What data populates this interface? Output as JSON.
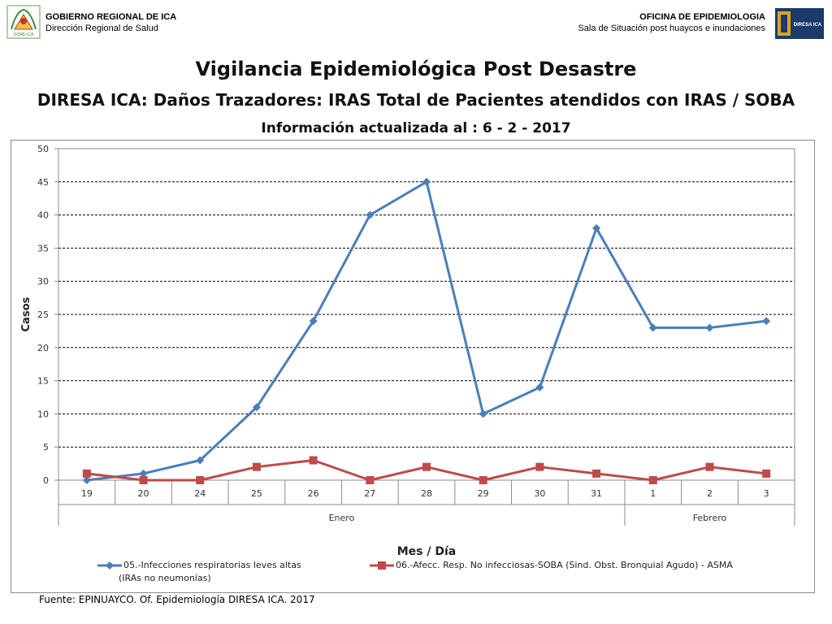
{
  "header": {
    "left_org": "GOBIERNO REGIONAL DE ICA",
    "left_sub": "Dirección Regional de Salud",
    "right_org": "OFICINA DE EPIDEMIOLOGIA",
    "right_sub": "Sala de Situación post huaycos e inundaciones",
    "left_logo_text": "GORE-ICA",
    "right_logo_text": "DIRESA ICA"
  },
  "titles": {
    "line1": "Vigilancia Epidemiológica Post Desastre",
    "line2": "DIRESA ICA: Daños Trazadores: IRAS Total de Pacientes atendidos con IRAS / SOBA",
    "line3": "Información actualizada al  : 6 - 2 - 2017"
  },
  "source": "Fuente: EPINUAYCO. Of. Epidemiología DIRESA ICA. 2017",
  "colors": {
    "series1": "#4a7ebb",
    "series2": "#be4b48",
    "grid": "#000000",
    "axis": "#8a8a8a"
  },
  "chart_data": {
    "type": "line",
    "categories": [
      "19",
      "20",
      "24",
      "25",
      "26",
      "27",
      "28",
      "29",
      "30",
      "31",
      "1",
      "2",
      "3"
    ],
    "month_groups": [
      {
        "label": "Enero",
        "count": 10
      },
      {
        "label": "Febrero",
        "count": 3
      }
    ],
    "series": [
      {
        "name": "05.-Infecciones respiratorias leves altas (IRAs no neumonías)",
        "name_line1": "05.-Infecciones respiratorias leves altas",
        "name_line2": "(IRAs no neumonías)",
        "marker": "diamond",
        "values": [
          0,
          1,
          3,
          11,
          24,
          40,
          45,
          10,
          14,
          38,
          23,
          23,
          24
        ]
      },
      {
        "name": "06.-Afecc. Resp. No infecciosas-SOBA (Sind. Obst. Bronquial Agudo) - ASMA",
        "marker": "square",
        "values": [
          1,
          0,
          0,
          2,
          3,
          0,
          2,
          0,
          2,
          1,
          0,
          2,
          1
        ]
      }
    ],
    "xlabel": "Mes / Día",
    "ylabel": "Casos",
    "ylim": [
      0,
      50
    ],
    "yticks": [
      0,
      5,
      10,
      15,
      20,
      25,
      30,
      35,
      40,
      45,
      50
    ],
    "grid": "dashed-horizontal",
    "legend_position": "bottom"
  }
}
